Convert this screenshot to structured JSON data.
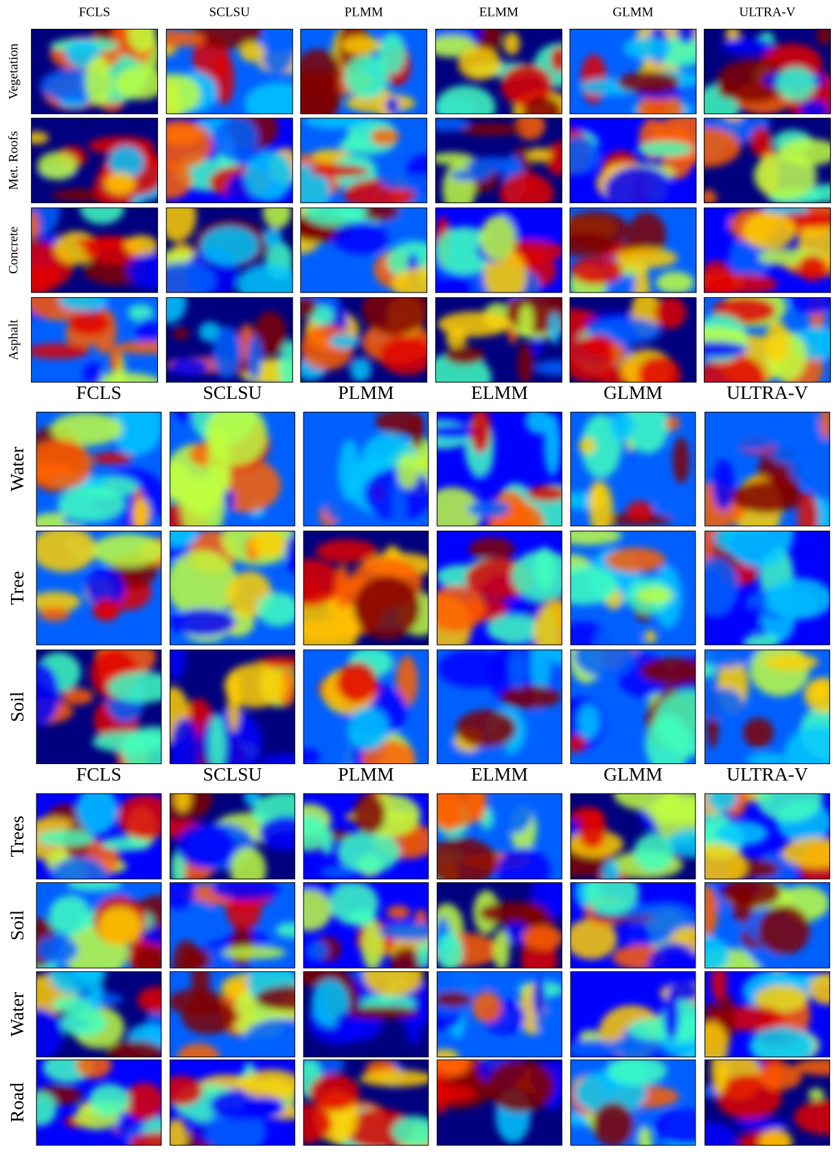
{
  "panels": [
    {
      "columns": [
        "FCLS",
        "SCLSU",
        "PLMM",
        "ELMM",
        "GLMM",
        "ULTRA-V"
      ],
      "rows": [
        "Vegetation",
        "Met. Roofs",
        "Concrete",
        "Asphalt"
      ]
    },
    {
      "columns": [
        "FCLS",
        "SCLSU",
        "PLMM",
        "ELMM",
        "GLMM",
        "ULTRA-V"
      ],
      "rows": [
        "Water",
        "Tree",
        "Soil"
      ]
    },
    {
      "columns": [
        "FCLS",
        "SCLSU",
        "PLMM",
        "ELMM",
        "GLMM",
        "ULTRA-V"
      ],
      "rows": [
        "Trees",
        "Soil",
        "Water",
        "Road"
      ]
    }
  ]
}
